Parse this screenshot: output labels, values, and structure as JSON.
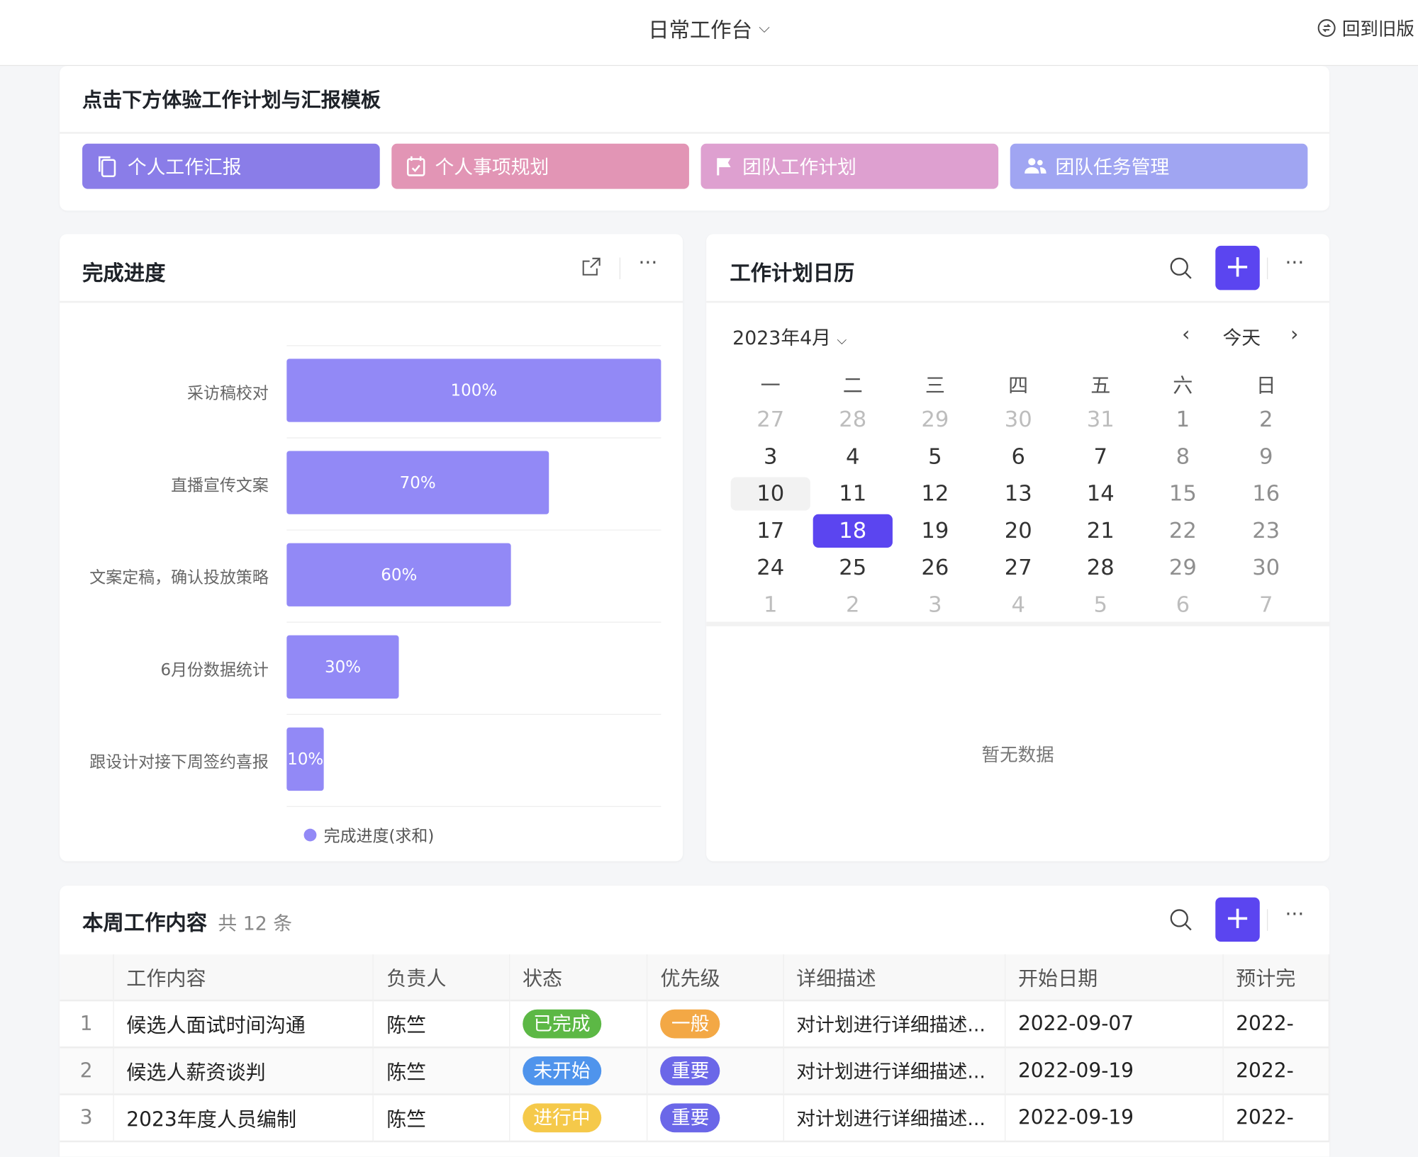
{
  "header": {
    "title": "日常工作台",
    "back_label": "回到旧版"
  },
  "templates": {
    "title": "点击下方体验工作计划与汇报模板",
    "buttons": [
      {
        "label": "个人工作汇报",
        "icon": "copy-icon",
        "color": "#8a7de8"
      },
      {
        "label": "个人事项规划",
        "icon": "calendar-check-icon",
        "color": "#e295b5"
      },
      {
        "label": "团队工作计划",
        "icon": "flag-icon",
        "color": "#dea0d0"
      },
      {
        "label": "团队任务管理",
        "icon": "users-icon",
        "color": "#a0a5f2"
      }
    ]
  },
  "progress": {
    "title": "完成进度"
  },
  "chart_data": {
    "type": "bar",
    "orientation": "horizontal",
    "categories": [
      "采访稿校对",
      "直播宣传文案",
      "文案定稿，确认投放策略",
      "6月份数据统计",
      "跟设计对接下周签约喜报"
    ],
    "series": [
      {
        "name": "完成进度(求和)",
        "values": [
          100,
          70,
          60,
          30,
          10
        ]
      }
    ],
    "data_labels": [
      "100%",
      "70%",
      "60%",
      "30%",
      "10%"
    ],
    "xlim": [
      0,
      100
    ],
    "legend": "bottom",
    "color": "#9289f6",
    "grid": true
  },
  "calendar": {
    "title": "工作计划日历",
    "month_label": "2023年4月",
    "today_label": "今天",
    "weekdays": [
      "一",
      "二",
      "三",
      "四",
      "五",
      "六",
      "日"
    ],
    "weeks": [
      [
        "27",
        "28",
        "29",
        "30",
        "31",
        "1",
        "2"
      ],
      [
        "3",
        "4",
        "5",
        "6",
        "7",
        "8",
        "9"
      ],
      [
        "10",
        "11",
        "12",
        "13",
        "14",
        "15",
        "16"
      ],
      [
        "17",
        "18",
        "19",
        "20",
        "21",
        "22",
        "23"
      ],
      [
        "24",
        "25",
        "26",
        "27",
        "28",
        "29",
        "30"
      ],
      [
        "1",
        "2",
        "3",
        "4",
        "5",
        "6",
        "7"
      ]
    ],
    "selected": "18",
    "empty_text": "暂无数据",
    "accent": "#5b45f0"
  },
  "tasks": {
    "title": "本周工作内容",
    "count_label": "共 12 条",
    "columns": [
      "",
      "工作内容",
      "负责人",
      "状态",
      "优先级",
      "详细描述",
      "开始日期",
      "预计完"
    ],
    "rows": [
      {
        "index": "1",
        "content": "候选人面试时间沟通",
        "owner": "陈竺",
        "status": "已完成",
        "status_color": "#5cb845",
        "priority": "一般",
        "priority_color": "#f3a845",
        "desc": "对计划进行详细描述...",
        "start": "2022-09-07",
        "end": "2022-"
      },
      {
        "index": "2",
        "content": "候选人薪资谈判",
        "owner": "陈竺",
        "status": "未开始",
        "status_color": "#4f94ec",
        "priority": "重要",
        "priority_color": "#6b67e8",
        "desc": "对计划进行详细描述...",
        "start": "2022-09-19",
        "end": "2022-"
      },
      {
        "index": "3",
        "content": "2023年度人员编制",
        "owner": "陈竺",
        "status": "进行中",
        "status_color": "#f5c94a",
        "priority": "重要",
        "priority_color": "#6b67e8",
        "desc": "对计划进行详细描述...",
        "start": "2022-09-19",
        "end": "2022-"
      }
    ]
  }
}
